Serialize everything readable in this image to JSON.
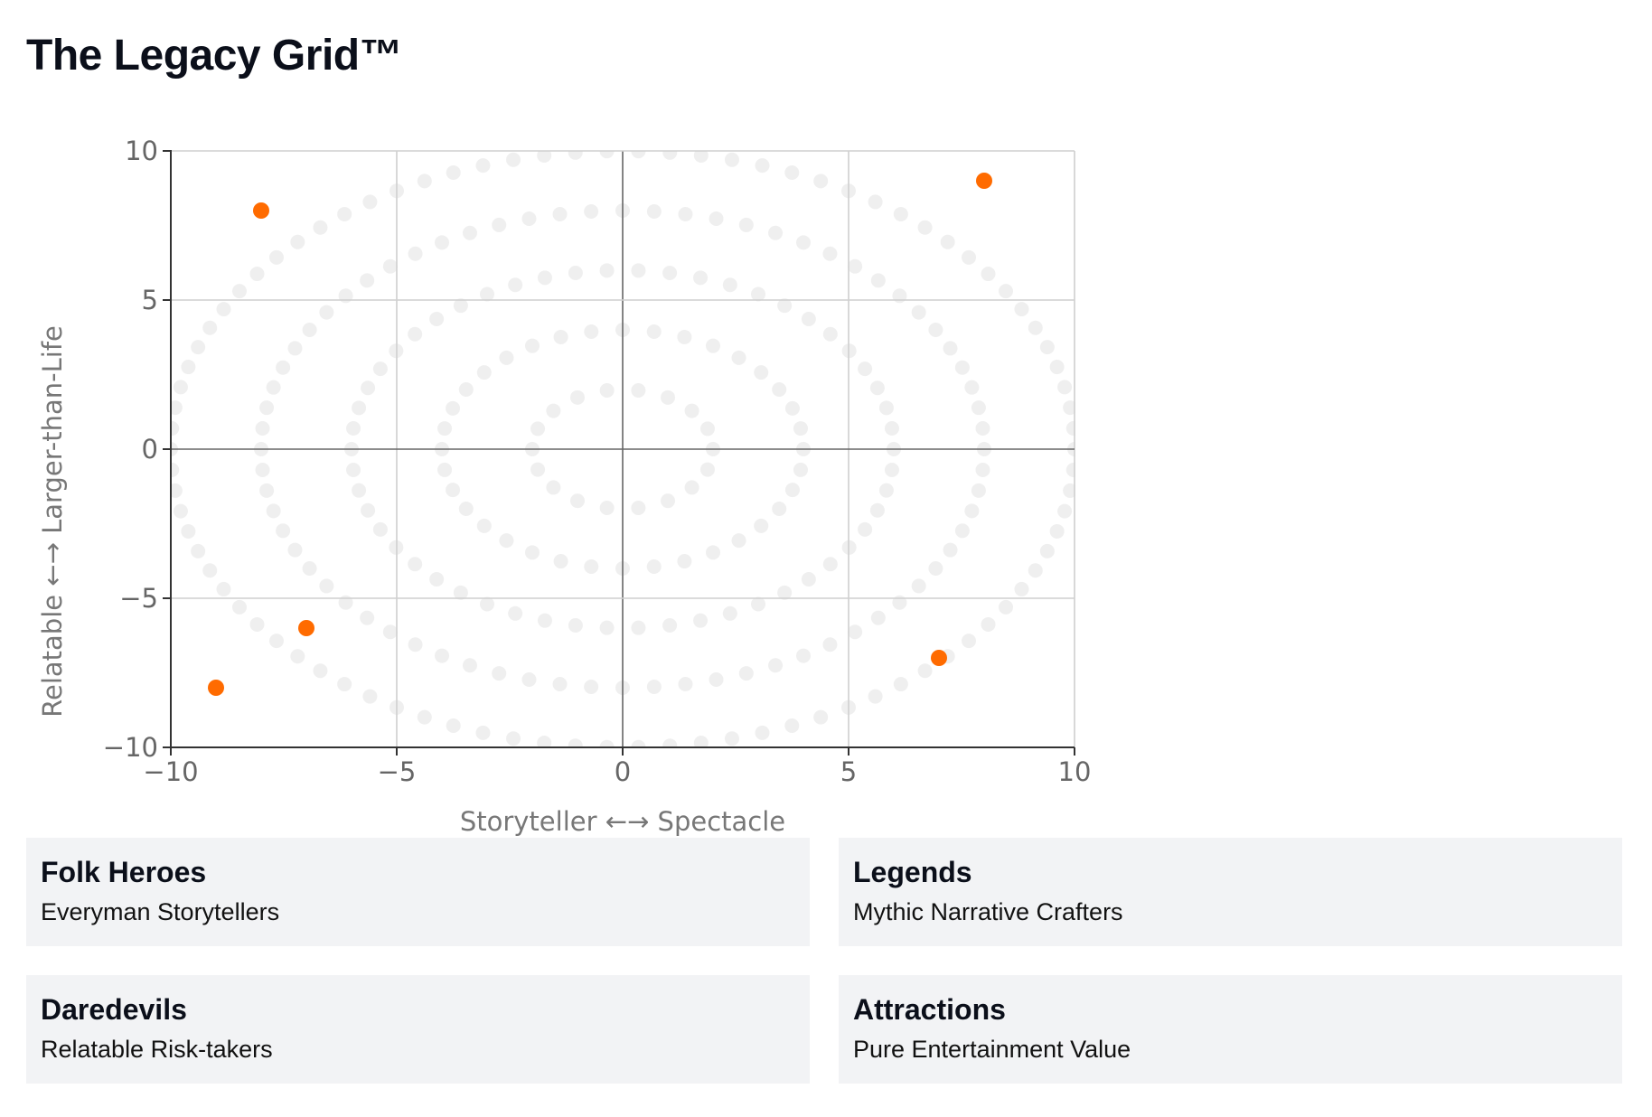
{
  "page": {
    "title": "The Legacy Grid™"
  },
  "chart_data": {
    "type": "scatter",
    "title": "",
    "xlabel": "Storyteller ←→ Spectacle",
    "ylabel": "Relatable ←→ Larger-than-Life",
    "xlim": [
      -10,
      10
    ],
    "ylim": [
      -10,
      10
    ],
    "xticks": [
      -10,
      -5,
      0,
      5,
      10
    ],
    "yticks": [
      -10,
      -5,
      0,
      5,
      10
    ],
    "grid": true,
    "background_rings": {
      "radii": [
        2,
        4,
        6,
        8,
        10
      ],
      "vertical_scale": [
        1,
        1,
        1,
        1,
        1
      ],
      "color": "#e8e8e8"
    },
    "points": [
      {
        "x": -8,
        "y": 8
      },
      {
        "x": 8,
        "y": 9
      },
      {
        "x": -7,
        "y": -6
      },
      {
        "x": -9,
        "y": -8
      },
      {
        "x": 7,
        "y": -7
      }
    ],
    "point_color": "#ff6b00"
  },
  "quadrants": [
    {
      "title": "Folk Heroes",
      "subtitle": "Everyman Storytellers"
    },
    {
      "title": "Legends",
      "subtitle": "Mythic Narrative Crafters"
    },
    {
      "title": "Daredevils",
      "subtitle": "Relatable Risk-takers"
    },
    {
      "title": "Attractions",
      "subtitle": "Pure Entertainment Value"
    }
  ]
}
